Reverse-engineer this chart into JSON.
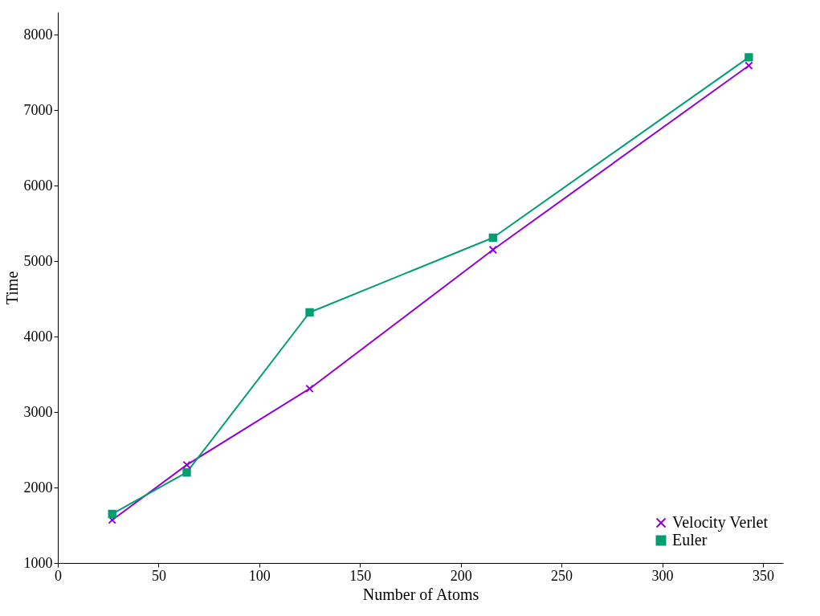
{
  "chart_data": {
    "type": "line",
    "xlabel": "Number of Atoms",
    "ylabel": "Time",
    "x": [
      27,
      64,
      125,
      216,
      343
    ],
    "series": [
      {
        "name": "Velocity Verlet",
        "color": "#9400d3",
        "marker": "cross",
        "values": [
          1570,
          2300,
          3310,
          5150,
          7590
        ]
      },
      {
        "name": "Euler",
        "color": "#009e73",
        "marker": "square",
        "values": [
          1650,
          2200,
          4320,
          5310,
          7700
        ]
      }
    ],
    "xlim": [
      0,
      360
    ],
    "xticks": [
      0,
      50,
      100,
      150,
      200,
      250,
      300,
      350
    ],
    "ylim": [
      1000,
      8300
    ],
    "yticks": [
      1000,
      2000,
      3000,
      4000,
      5000,
      6000,
      7000,
      8000
    ],
    "grid": false,
    "legend": "bottom right",
    "line_style": "solid"
  }
}
